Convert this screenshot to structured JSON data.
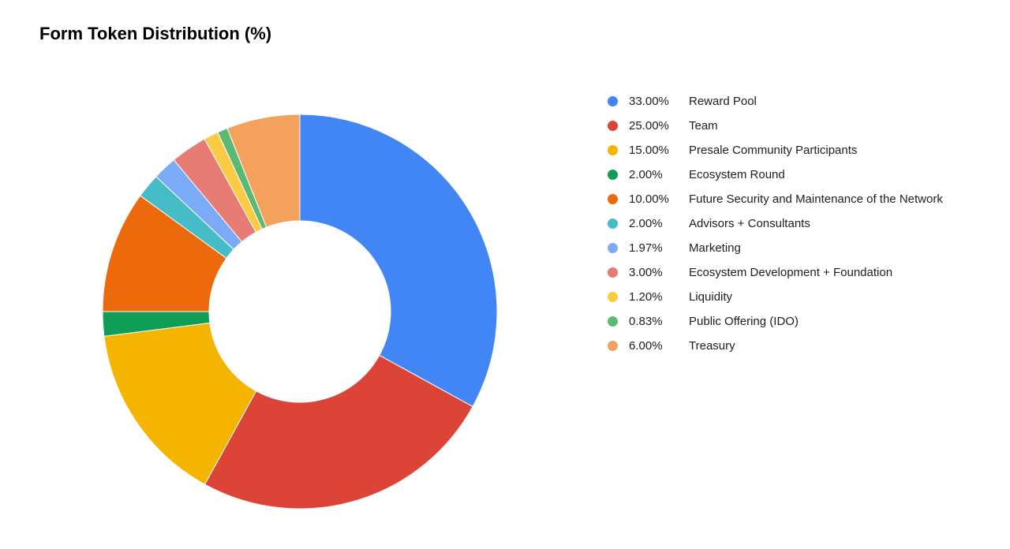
{
  "title": "Form Token Distribution (%)",
  "chart": {
    "type": "donut",
    "inner_radius_ratio": 0.46,
    "outer_radius": 250,
    "start_angle_deg": 0,
    "background_color": "#ffffff",
    "title_fontsize": 22,
    "title_fontweight": "bold",
    "legend_fontsize": 15,
    "legend_text_color": "#202020",
    "slices": [
      {
        "label": "Reward Pool",
        "percent": 33.0,
        "percent_text": "33.00%",
        "color": "#4285f4"
      },
      {
        "label": "Team",
        "percent": 25.0,
        "percent_text": "25.00%",
        "color": "#db4437"
      },
      {
        "label": "Presale Community Participants",
        "percent": 15.0,
        "percent_text": "15.00%",
        "color": "#f4b400"
      },
      {
        "label": "Ecosystem Round",
        "percent": 2.0,
        "percent_text": "2.00%",
        "color": "#0f9d58"
      },
      {
        "label": "Future Security and Maintenance of the Network",
        "percent": 10.0,
        "percent_text": "10.00%",
        "color": "#ed6a0c"
      },
      {
        "label": "Advisors + Consultants",
        "percent": 2.0,
        "percent_text": "2.00%",
        "color": "#46bdc6"
      },
      {
        "label": "Marketing",
        "percent": 1.97,
        "percent_text": "1.97%",
        "color": "#7baaf7"
      },
      {
        "label": "Ecosystem Development + Foundation",
        "percent": 3.0,
        "percent_text": "3.00%",
        "color": "#e67c73"
      },
      {
        "label": "Liquidity",
        "percent": 1.2,
        "percent_text": "1.20%",
        "color": "#fbcb43"
      },
      {
        "label": "Public Offering (IDO)",
        "percent": 0.83,
        "percent_text": "0.83%",
        "color": "#5bb974"
      },
      {
        "label": "Treasury",
        "percent": 6.0,
        "percent_text": "6.00%",
        "color": "#f5a15e"
      }
    ]
  }
}
